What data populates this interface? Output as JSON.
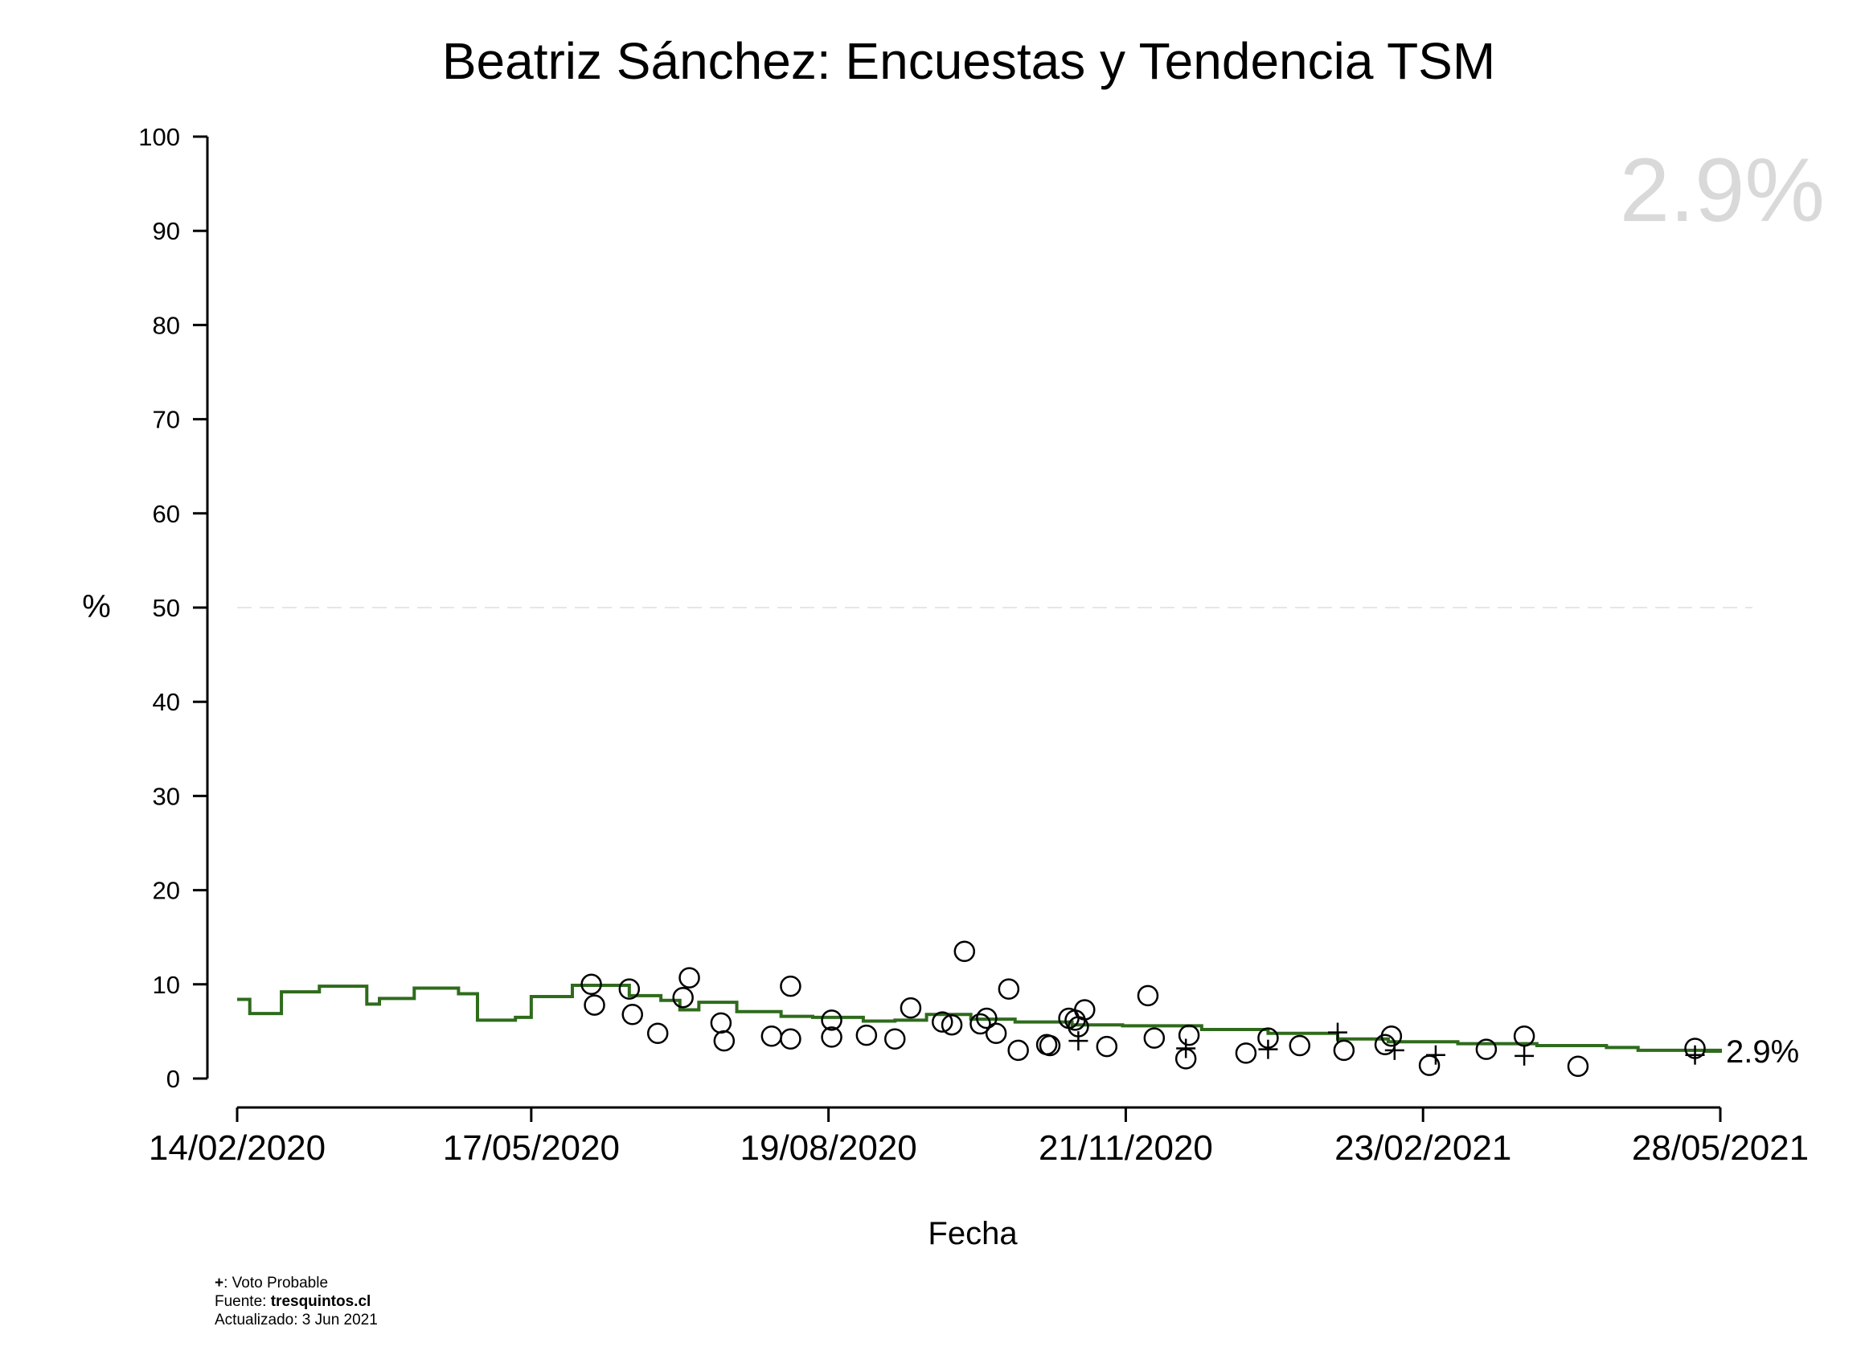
{
  "chart_data": {
    "type": "scatter",
    "title": "Beatriz Sánchez: Encuestas y Tendencia TSM",
    "xlabel": "Fecha",
    "ylabel": "%",
    "ylim": [
      0,
      100
    ],
    "yticks": [
      0,
      10,
      20,
      30,
      40,
      50,
      60,
      70,
      80,
      90,
      100
    ],
    "xlim": [
      "2020-02-14",
      "2021-05-28"
    ],
    "xticks": [
      "2020-02-14",
      "2020-05-17",
      "2020-08-19",
      "2020-11-21",
      "2021-02-23",
      "2021-05-28"
    ],
    "xtick_labels": [
      "14/02/2020",
      "17/05/2020",
      "19/08/2020",
      "21/11/2020",
      "23/02/2021",
      "28/05/2021"
    ],
    "reference_line": 50,
    "big_label": "2.9%",
    "end_label": "2.9%",
    "colors": {
      "trend": "#2e6b1c",
      "reference": "#e6e6e6",
      "big_label": "#d9d9d9"
    },
    "series": [
      {
        "type": "step-line",
        "x": [
          "2020-02-14",
          "2020-02-18",
          "2020-02-28",
          "2020-03-11",
          "2020-03-26",
          "2020-03-30",
          "2020-04-10",
          "2020-04-14",
          "2020-04-24",
          "2020-04-30",
          "2020-05-12",
          "2020-05-17",
          "2020-05-30",
          "2020-06-07",
          "2020-06-17",
          "2020-06-27",
          "2020-07-03",
          "2020-07-09",
          "2020-07-21",
          "2020-08-04",
          "2020-08-14",
          "2020-08-30",
          "2020-09-09",
          "2020-09-19",
          "2020-10-03",
          "2020-10-17",
          "2020-11-04",
          "2020-11-20",
          "2020-12-15",
          "2021-01-05",
          "2021-01-27",
          "2021-02-12",
          "2021-03-06",
          "2021-03-31",
          "2021-04-22",
          "2021-05-02",
          "2021-05-28"
        ],
        "y": [
          8.4,
          6.9,
          9.2,
          9.8,
          7.9,
          8.5,
          9.6,
          9.6,
          9.0,
          6.2,
          6.5,
          8.7,
          9.9,
          9.9,
          8.8,
          8.3,
          7.3,
          8.1,
          7.1,
          6.6,
          6.5,
          6.1,
          6.2,
          6.8,
          6.3,
          6.0,
          5.7,
          5.6,
          5.2,
          4.8,
          4.2,
          3.9,
          3.7,
          3.5,
          3.3,
          3.0,
          2.9
        ]
      },
      {
        "type": "scatter",
        "marker": "circle",
        "x": [
          "2020-06-06",
          "2020-06-05",
          "2020-06-17",
          "2020-06-18",
          "2020-06-26",
          "2020-07-04",
          "2020-07-06",
          "2020-07-16",
          "2020-07-17",
          "2020-08-01",
          "2020-08-07",
          "2020-08-07",
          "2020-08-20",
          "2020-08-20",
          "2020-08-31",
          "2020-09-09",
          "2020-09-14",
          "2020-09-24",
          "2020-09-27",
          "2020-10-01",
          "2020-10-06",
          "2020-10-08",
          "2020-10-11",
          "2020-10-15",
          "2020-10-18",
          "2020-10-28",
          "2020-10-27",
          "2020-11-03",
          "2020-11-05",
          "2020-11-06",
          "2020-11-08",
          "2020-11-15",
          "2020-11-28",
          "2020-11-30",
          "2020-12-10",
          "2020-12-11",
          "2020-12-29",
          "2021-01-05",
          "2021-01-15",
          "2021-01-29",
          "2021-02-11",
          "2021-02-13",
          "2021-02-25",
          "2021-03-15",
          "2021-03-27",
          "2021-04-13",
          "2021-05-20"
        ],
        "y": [
          7.8,
          10.0,
          9.5,
          6.8,
          4.8,
          8.6,
          10.7,
          5.9,
          4.0,
          4.5,
          9.8,
          4.2,
          6.2,
          4.4,
          4.6,
          4.2,
          7.5,
          6.0,
          5.7,
          13.5,
          5.8,
          6.4,
          4.8,
          9.5,
          3.0,
          3.5,
          3.6,
          6.4,
          6.2,
          5.5,
          7.3,
          3.4,
          8.8,
          4.3,
          2.1,
          4.6,
          2.7,
          4.3,
          3.5,
          3.0,
          3.6,
          4.5,
          1.4,
          3.1,
          4.5,
          1.3,
          3.2
        ]
      },
      {
        "name": "Voto Probable",
        "type": "scatter",
        "marker": "plus",
        "x": [
          "2020-11-06",
          "2020-12-10",
          "2021-01-05",
          "2021-01-27",
          "2021-02-14",
          "2021-02-27",
          "2021-03-27",
          "2021-05-20"
        ],
        "y": [
          4.0,
          3.2,
          3.1,
          4.9,
          3.0,
          2.5,
          2.4,
          2.5
        ]
      }
    ]
  },
  "footer": {
    "legend_symbol": "+",
    "legend_text": ": Voto Probable",
    "source_label": "Fuente: ",
    "source_value": "tresquintos.cl",
    "updated": "Actualizado: 3 Jun 2021"
  }
}
